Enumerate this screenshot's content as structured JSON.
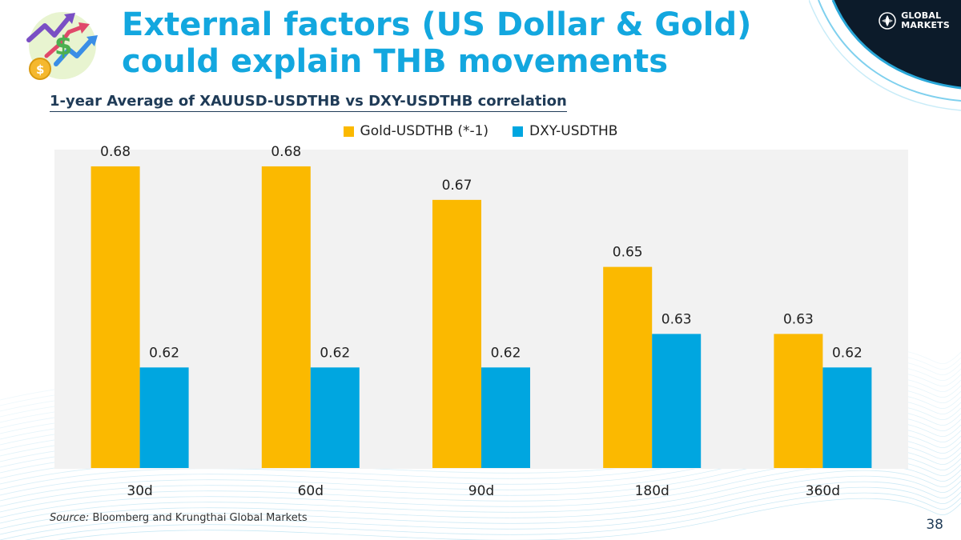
{
  "slide": {
    "title": "External factors (US Dollar & Gold) could explain THB movements",
    "subtitle": "1-year Average of XAUUSD-USDTHB vs DXY-USDTHB correlation",
    "source_prefix": "Source:",
    "source_text": "Bloomberg and Krungthai Global Markets",
    "page_number": "38",
    "brand": {
      "line1": "GLOBAL",
      "line2": "MARKETS"
    },
    "icons": [
      "finance-growth-icon",
      "brand-emblem-icon"
    ]
  },
  "colors": {
    "title": "#13a7df",
    "gold_series": "#fbb900",
    "dxy_series": "#00a6e0",
    "plot_background": "#f2f2f2",
    "brand_dark": "#0c1b2a"
  },
  "chart_data": {
    "type": "bar",
    "categories": [
      "30d",
      "60d",
      "90d",
      "180d",
      "360d"
    ],
    "series": [
      {
        "name": "Gold-USDTHB (*-1)",
        "color": "#fbb900",
        "values": [
          0.68,
          0.68,
          0.67,
          0.65,
          0.63
        ]
      },
      {
        "name": "DXY-USDTHB",
        "color": "#00a6e0",
        "values": [
          0.62,
          0.62,
          0.62,
          0.63,
          0.62
        ]
      }
    ],
    "data_labels": [
      [
        "0.68",
        "0.68",
        "0.67",
        "0.65",
        "0.63"
      ],
      [
        "0.62",
        "0.62",
        "0.62",
        "0.63",
        "0.62"
      ]
    ],
    "ylim": [
      0.59,
      0.685
    ],
    "grid": false,
    "legend_position": "top-center"
  }
}
